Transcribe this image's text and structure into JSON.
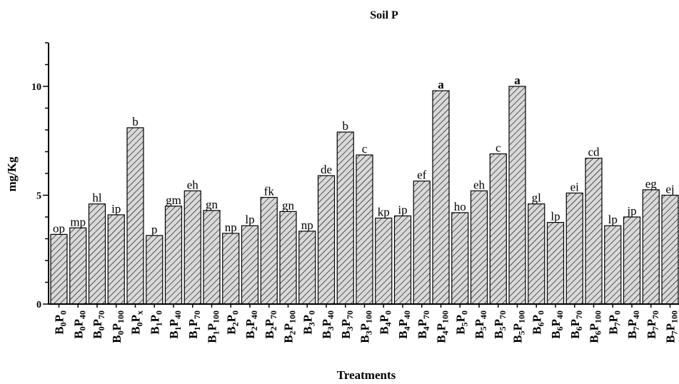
{
  "chart_data": {
    "type": "bar",
    "title": "Soil P",
    "xlabel": "Treatments",
    "ylabel": "mg/Kg",
    "ylim": [
      0,
      12
    ],
    "yticks": [
      0,
      5,
      10
    ],
    "grid": false,
    "bar_pattern": "diagonal-hatch",
    "colors": {
      "bar_fill": "#d9d9d9",
      "hatch": "#000000",
      "axis": "#000000"
    },
    "categories": [
      {
        "b": "0",
        "p": "0"
      },
      {
        "b": "0",
        "p": "40"
      },
      {
        "b": "0",
        "p": "70"
      },
      {
        "b": "0",
        "p": "100"
      },
      {
        "b": "0",
        "p": "x"
      },
      {
        "b": "1",
        "p": "0"
      },
      {
        "b": "1",
        "p": "40"
      },
      {
        "b": "1",
        "p": "70"
      },
      {
        "b": "1",
        "p": "100"
      },
      {
        "b": "2",
        "p": "0"
      },
      {
        "b": "2",
        "p": "40"
      },
      {
        "b": "2",
        "p": "70"
      },
      {
        "b": "2",
        "p": "100"
      },
      {
        "b": "3",
        "p": "0"
      },
      {
        "b": "3",
        "p": "40"
      },
      {
        "b": "3",
        "p": "70"
      },
      {
        "b": "3",
        "p": "100"
      },
      {
        "b": "4",
        "p": "0"
      },
      {
        "b": "4",
        "p": "40"
      },
      {
        "b": "4",
        "p": "70"
      },
      {
        "b": "4",
        "p": "100"
      },
      {
        "b": "5",
        "p": "0"
      },
      {
        "b": "5",
        "p": "40"
      },
      {
        "b": "5",
        "p": "70"
      },
      {
        "b": "5",
        "p": "100"
      },
      {
        "b": "6",
        "p": "0"
      },
      {
        "b": "6",
        "p": "40"
      },
      {
        "b": "6",
        "p": "70"
      },
      {
        "b": "6",
        "p": "100"
      },
      {
        "b": "7",
        "p": "0"
      },
      {
        "b": "7",
        "p": "40"
      },
      {
        "b": "7",
        "p": "70"
      },
      {
        "b": "7",
        "p": "100"
      }
    ],
    "values": [
      3.2,
      3.5,
      4.6,
      4.1,
      8.1,
      3.15,
      4.5,
      5.2,
      4.3,
      3.25,
      3.6,
      4.9,
      4.25,
      3.35,
      5.9,
      7.9,
      6.85,
      3.95,
      4.05,
      5.65,
      9.8,
      4.2,
      5.2,
      6.9,
      10.0,
      4.6,
      3.75,
      5.1,
      6.7,
      3.6,
      4.0,
      5.25,
      5.0
    ],
    "annotations": [
      "op",
      "mp",
      "hl",
      "ip",
      "b",
      "p",
      "gm",
      "eh",
      "gn",
      "np",
      "lp",
      "fk",
      "gn",
      "np",
      "de",
      "b",
      "c",
      "kp",
      "ip",
      "ef",
      "a",
      "ho",
      "eh",
      "c",
      "a",
      "gl",
      "lp",
      "ei",
      "cd",
      "lp",
      "jp",
      "eg",
      "ej"
    ],
    "annotations_bold": [
      "a"
    ]
  }
}
